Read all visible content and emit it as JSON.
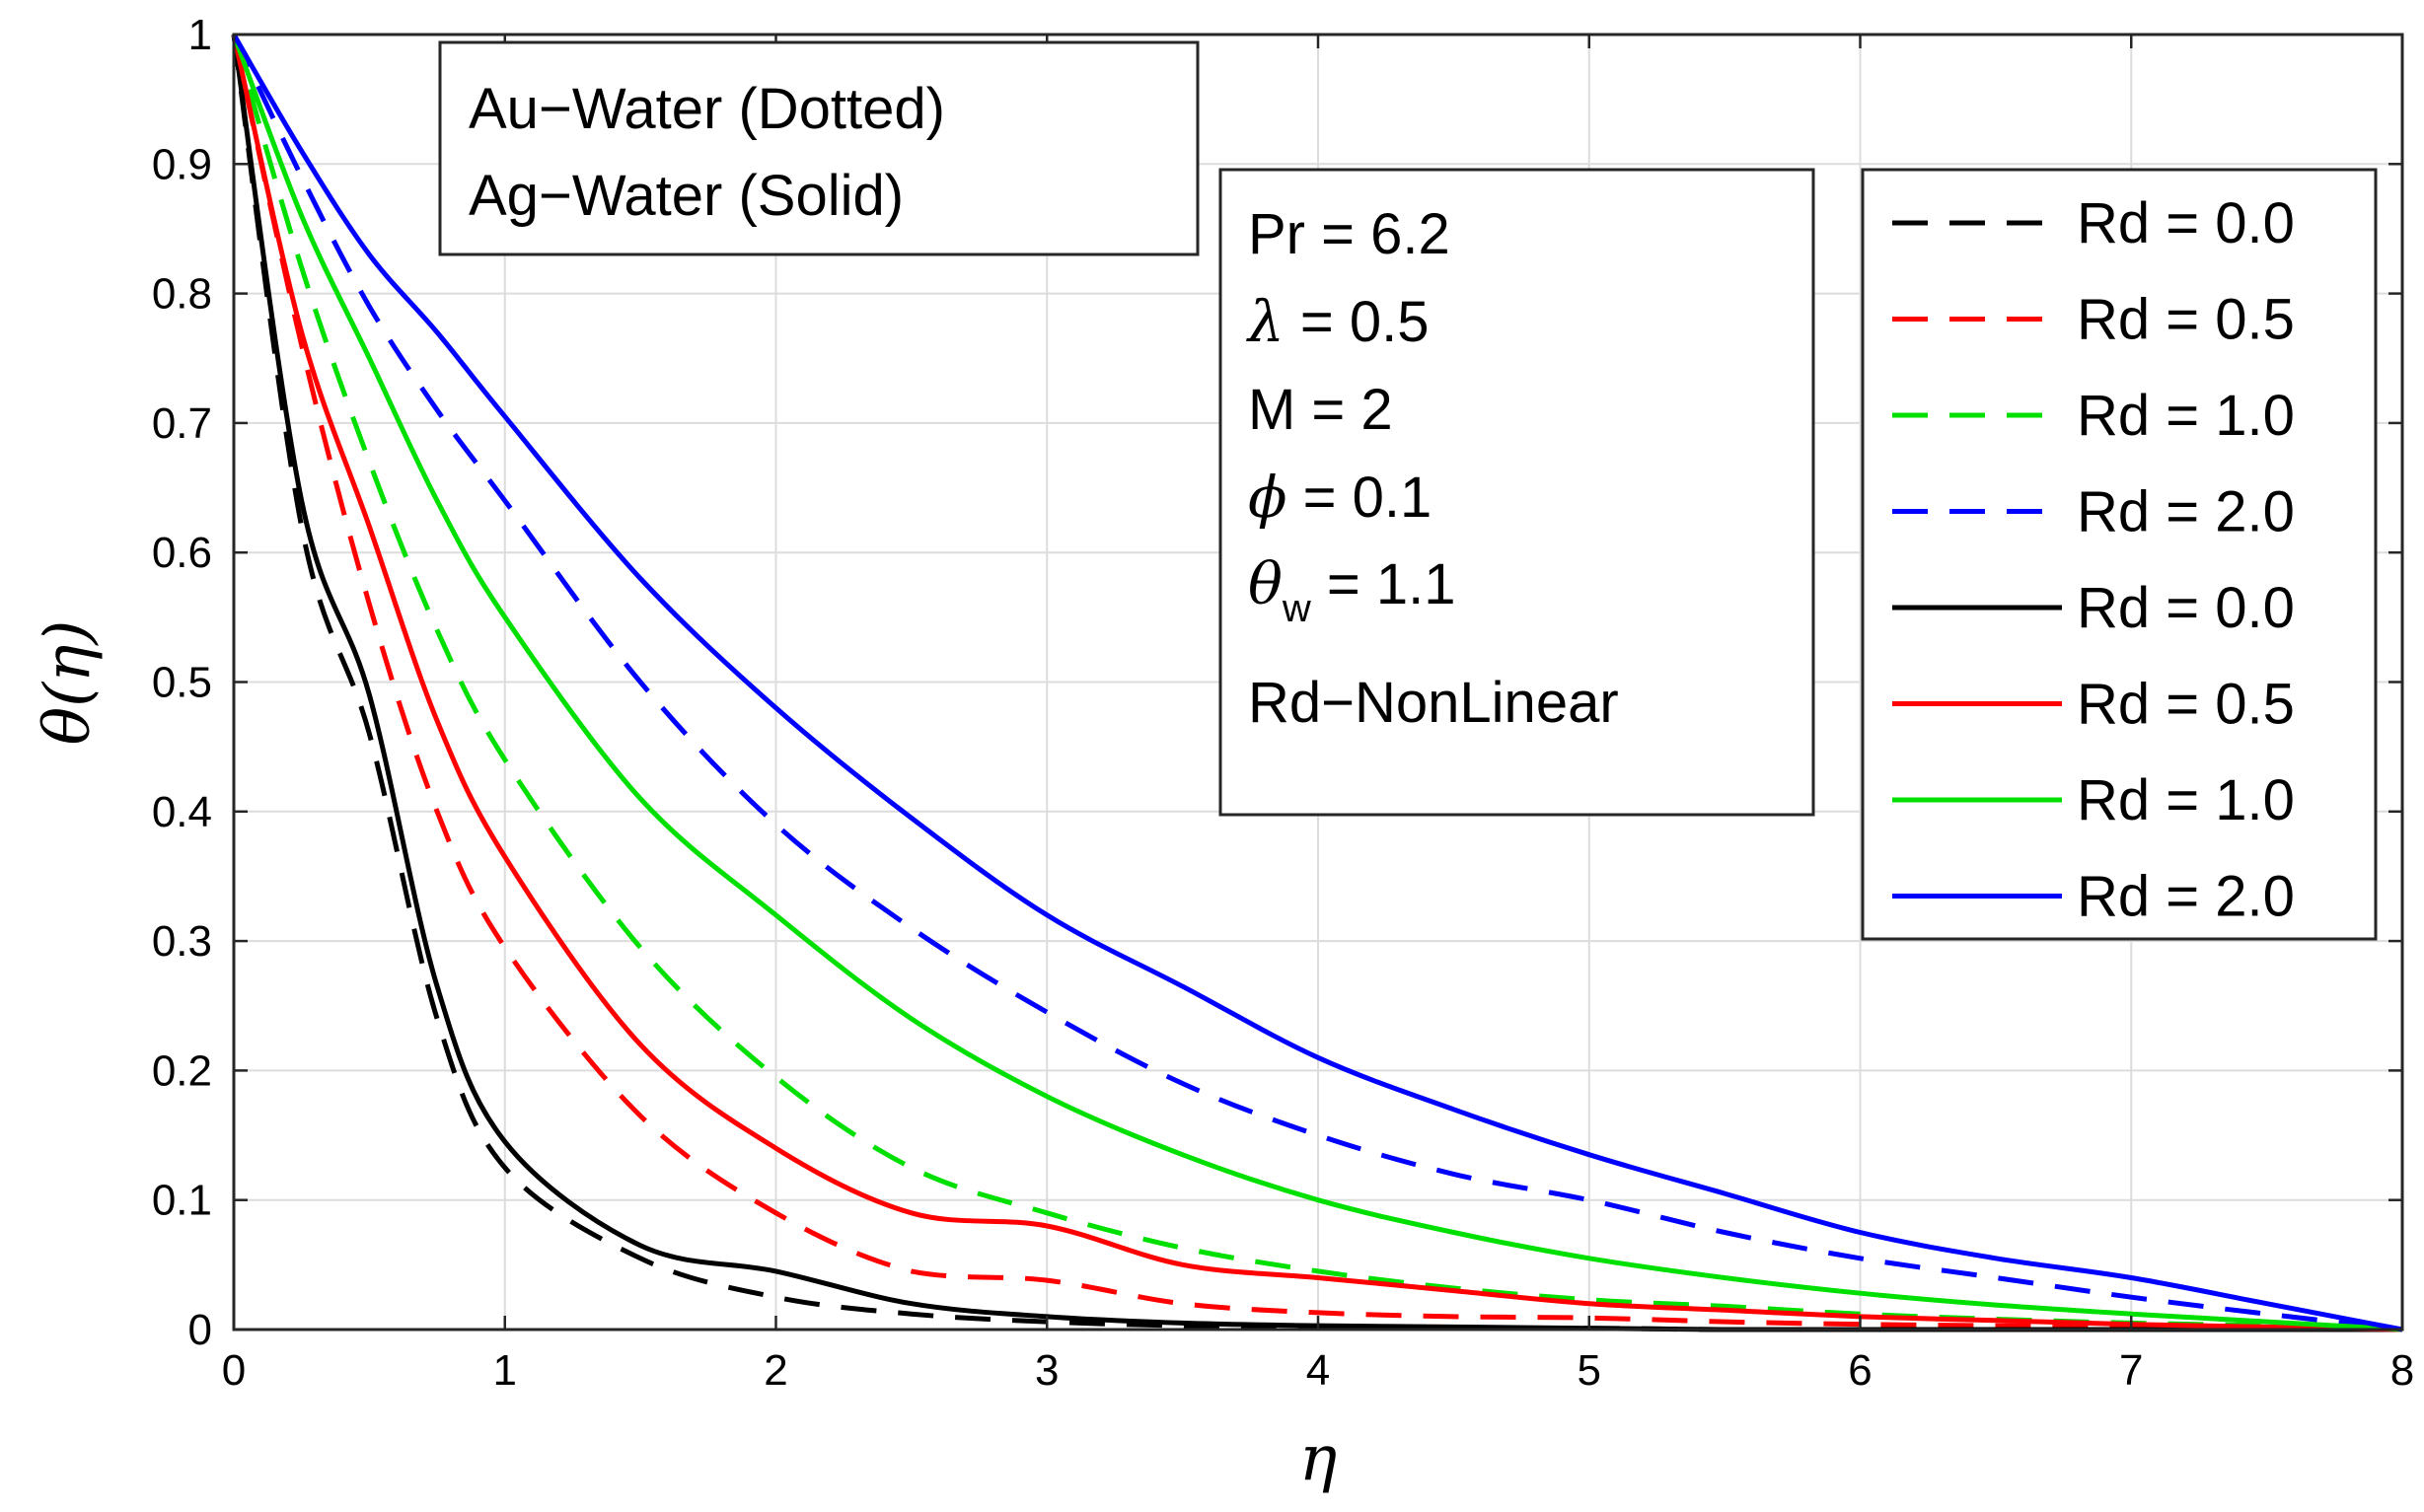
{
  "chart_data": {
    "type": "line",
    "xlabel": "η",
    "ylabel": "θ(η)",
    "xlim": [
      0,
      8
    ],
    "ylim": [
      0,
      1
    ],
    "xticks": [
      "0",
      "1",
      "2",
      "3",
      "4",
      "5",
      "6",
      "7",
      "8"
    ],
    "yticks": [
      "0",
      "0.1",
      "0.2",
      "0.3",
      "0.4",
      "0.5",
      "0.6",
      "0.7",
      "0.8",
      "0.9",
      "1"
    ],
    "grid": true,
    "legend_position": "top-right",
    "annotation_fluids": [
      "Au−Water (Dotted)",
      "Ag−Water (Solid)"
    ],
    "annotation_params": {
      "pr": "Pr = 6.2",
      "lambda_sym": "λ",
      "lambda_val": " = 0.5",
      "m": "M = 2",
      "phi_sym": "ϕ",
      "phi_val": " = 0.1",
      "theta_sym": "θ",
      "theta_sub": "w",
      "theta_val": " = 1.1",
      "rd": "Rd−NonLinear"
    },
    "x": [
      0,
      0.25,
      0.5,
      0.75,
      1,
      1.5,
      2,
      2.5,
      3,
      3.5,
      4,
      4.5,
      5,
      5.5,
      6,
      6.5,
      7,
      7.5,
      8
    ],
    "series": [
      {
        "name": "Rd = 0.0",
        "color": "#000000",
        "style": "dashed",
        "fluid": "Au-Water",
        "values": [
          1,
          0.62,
          0.46,
          0.24,
          0.125,
          0.055,
          0.025,
          0.012,
          0.006,
          0.003,
          0.002,
          0.001,
          0.001,
          0,
          0,
          0,
          0,
          0,
          0
        ]
      },
      {
        "name": "Rd = 0.5",
        "color": "#ff0000",
        "style": "dashed",
        "fluid": "Au-Water",
        "values": [
          1,
          0.76,
          0.56,
          0.4,
          0.295,
          0.165,
          0.09,
          0.045,
          0.038,
          0.02,
          0.013,
          0.01,
          0.009,
          0.006,
          0.004,
          0.003,
          0.002,
          0.001,
          0
        ]
      },
      {
        "name": "Rd = 1.0",
        "color": "#00e000",
        "style": "dashed",
        "fluid": "Au-Water",
        "values": [
          1,
          0.82,
          0.67,
          0.54,
          0.44,
          0.295,
          0.195,
          0.125,
          0.09,
          0.063,
          0.045,
          0.032,
          0.023,
          0.018,
          0.012,
          0.008,
          0.005,
          0.003,
          0
        ]
      },
      {
        "name": "Rd = 2.0",
        "color": "#0000ff",
        "style": "dashed",
        "fluid": "Au-Water",
        "values": [
          1,
          0.89,
          0.79,
          0.71,
          0.64,
          0.5,
          0.39,
          0.31,
          0.245,
          0.19,
          0.15,
          0.12,
          0.1,
          0.075,
          0.055,
          0.04,
          0.025,
          0.012,
          0
        ]
      },
      {
        "name": "Rd = 0.0",
        "color": "#000000",
        "style": "solid",
        "fluid": "Ag-Water",
        "values": [
          1,
          0.64,
          0.49,
          0.265,
          0.145,
          0.065,
          0.045,
          0.02,
          0.01,
          0.005,
          0.003,
          0.002,
          0.001,
          0,
          0,
          0,
          0,
          0,
          0
        ]
      },
      {
        "name": "Rd = 0.5",
        "color": "#ff0000",
        "style": "solid",
        "fluid": "Ag-Water",
        "values": [
          1,
          0.77,
          0.62,
          0.47,
          0.365,
          0.22,
          0.14,
          0.09,
          0.08,
          0.05,
          0.04,
          0.03,
          0.02,
          0.015,
          0.01,
          0.007,
          0.004,
          0.002,
          0
        ]
      },
      {
        "name": "Rd = 1.0",
        "color": "#00e000",
        "style": "solid",
        "fluid": "Ag-Water",
        "values": [
          1,
          0.86,
          0.75,
          0.64,
          0.55,
          0.41,
          0.32,
          0.24,
          0.18,
          0.135,
          0.1,
          0.075,
          0.055,
          0.04,
          0.028,
          0.019,
          0.012,
          0.006,
          0
        ]
      },
      {
        "name": "Rd = 2.0",
        "color": "#0000ff",
        "style": "solid",
        "fluid": "Ag-Water",
        "values": [
          1,
          0.91,
          0.83,
          0.77,
          0.705,
          0.58,
          0.48,
          0.395,
          0.32,
          0.265,
          0.21,
          0.17,
          0.135,
          0.105,
          0.075,
          0.055,
          0.04,
          0.02,
          0
        ]
      }
    ]
  }
}
